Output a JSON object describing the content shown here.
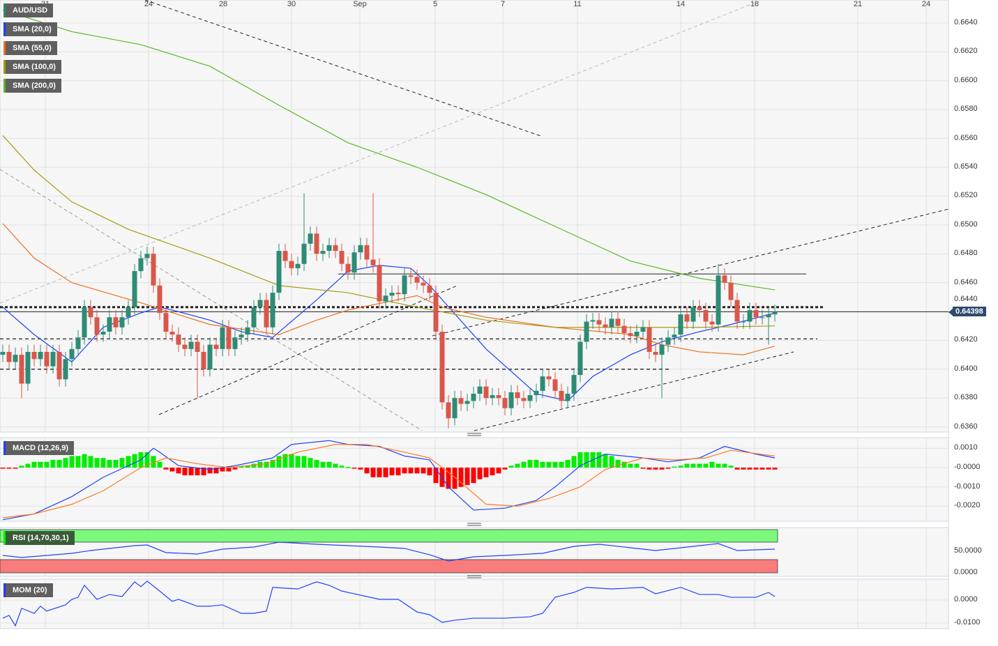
{
  "symbol": "AUD/USD",
  "legend": {
    "symbol": "AUD/USD",
    "sma20": "SMA (20,0)",
    "sma55": "SMA (55,0)",
    "sma100": "SMA (100,0)",
    "sma200": "SMA (200,0)",
    "macd": "MACD (12,26,9)",
    "rsi": "RSI (14,70,30,1)",
    "mom": "MOM (20)"
  },
  "current_price": "0.64398",
  "colors": {
    "up": "#2e8b74",
    "down": "#d9574a",
    "sma20": "#1f3fff",
    "sma55": "#f07020",
    "sma100": "#a89a10",
    "sma200": "#5ab820",
    "macd": "#2040ff",
    "signal": "#ff7a20",
    "hist_up": "#00ee00",
    "hist_down": "#ff0000",
    "rsi_over": "#7cf87c",
    "rsi_under": "#f87c7c",
    "mom": "#2040ff"
  },
  "chart_data": [
    {
      "type": "candlestick",
      "title": "AUD/USD",
      "y_ticks": [
        "0.6640",
        "0.6620",
        "0.6600",
        "0.6580",
        "0.6560",
        "0.6540",
        "0.6520",
        "0.6500",
        "0.6480",
        "0.6460",
        "0.6440",
        "0.6420",
        "0.6400",
        "0.6380",
        "0.6360"
      ],
      "ylim": [
        0.6355,
        0.665
      ],
      "x_ticks": [
        "21",
        "24",
        "28",
        "30",
        "Sep",
        "5",
        "7",
        "11",
        "14",
        "18",
        "21",
        "24"
      ],
      "open_first": 0.641,
      "closes": [
        0.6412,
        0.6405,
        0.641,
        0.639,
        0.6412,
        0.6407,
        0.6412,
        0.6402,
        0.6412,
        0.6393,
        0.6407,
        0.6414,
        0.6422,
        0.6443,
        0.6436,
        0.6424,
        0.6426,
        0.6436,
        0.6429,
        0.6436,
        0.6443,
        0.6468,
        0.6477,
        0.648,
        0.6458,
        0.6439,
        0.6426,
        0.6424,
        0.6417,
        0.6414,
        0.6419,
        0.6412,
        0.64,
        0.6417,
        0.6414,
        0.6429,
        0.6414,
        0.6422,
        0.6424,
        0.6429,
        0.6443,
        0.6448,
        0.6429,
        0.6453,
        0.6482,
        0.6475,
        0.647,
        0.6473,
        0.6487,
        0.6494,
        0.648,
        0.6482,
        0.6486,
        0.6482,
        0.6473,
        0.6467,
        0.6481,
        0.6486,
        0.6476,
        0.6472,
        0.6447,
        0.6451,
        0.6453,
        0.6452,
        0.6465,
        0.6464,
        0.646,
        0.6458,
        0.6453,
        0.6426,
        0.6377,
        0.6366,
        0.638,
        0.6376,
        0.6378,
        0.6383,
        0.6388,
        0.638,
        0.6382,
        0.638,
        0.6373,
        0.6384,
        0.638,
        0.6378,
        0.6382,
        0.6385,
        0.6395,
        0.6393,
        0.6385,
        0.6378,
        0.6383,
        0.6396,
        0.6419,
        0.6433,
        0.6434,
        0.6431,
        0.6429,
        0.6435,
        0.643,
        0.6425,
        0.6423,
        0.6426,
        0.6429,
        0.6412,
        0.641,
        0.6417,
        0.6422,
        0.6424,
        0.6438,
        0.6433,
        0.6443,
        0.6441,
        0.6433,
        0.6431,
        0.6465,
        0.646,
        0.6448,
        0.6433,
        0.6433,
        0.6441,
        0.6436,
        0.6436,
        0.6438,
        0.64398
      ],
      "wick": 0.0005,
      "wick_overrides": {
        "3": {
          "low": 0.638
        },
        "31": {
          "low": 0.638
        },
        "48": {
          "high": 0.6522
        },
        "59": {
          "high": 0.6522
        },
        "71": {
          "low": 0.6359
        },
        "105": {
          "low": 0.638
        },
        "114": {
          "high": 0.6473
        },
        "122": {
          "low": 0.6417
        }
      },
      "sma": {
        "sma20": [
          [
            0,
            0.6443
          ],
          [
            5,
            0.6424
          ],
          [
            11,
            0.6405
          ],
          [
            16,
            0.6429
          ],
          [
            22,
            0.6439
          ],
          [
            25,
            0.6443
          ],
          [
            27,
            0.6441
          ],
          [
            33,
            0.6434
          ],
          [
            38,
            0.6426
          ],
          [
            43,
            0.6422
          ],
          [
            50,
            0.6448
          ],
          [
            55,
            0.6468
          ],
          [
            60,
            0.6472
          ],
          [
            65,
            0.647
          ],
          [
            68,
            0.6458
          ],
          [
            77,
            0.6414
          ],
          [
            85,
            0.6383
          ],
          [
            90,
            0.6378
          ],
          [
            94,
            0.6395
          ],
          [
            100,
            0.641
          ],
          [
            105,
            0.6419
          ],
          [
            111,
            0.6426
          ],
          [
            116,
            0.6431
          ],
          [
            123,
            0.6439
          ]
        ],
        "sma55": [
          [
            0,
            0.6501
          ],
          [
            5,
            0.6477
          ],
          [
            11,
            0.646
          ],
          [
            22,
            0.6446
          ],
          [
            33,
            0.6431
          ],
          [
            44,
            0.6424
          ],
          [
            50,
            0.6434
          ],
          [
            55,
            0.6441
          ],
          [
            66,
            0.6451
          ],
          [
            70,
            0.6443
          ],
          [
            77,
            0.6436
          ],
          [
            88,
            0.6429
          ],
          [
            100,
            0.6424
          ],
          [
            105,
            0.6417
          ],
          [
            111,
            0.6412
          ],
          [
            118,
            0.641
          ],
          [
            123,
            0.6416
          ]
        ],
        "sma100": [
          [
            0,
            0.6562
          ],
          [
            5,
            0.6538
          ],
          [
            11,
            0.6516
          ],
          [
            20,
            0.6497
          ],
          [
            33,
            0.6477
          ],
          [
            44,
            0.6458
          ],
          [
            55,
            0.6453
          ],
          [
            66,
            0.6443
          ],
          [
            77,
            0.6434
          ],
          [
            88,
            0.6429
          ],
          [
            100,
            0.6429
          ],
          [
            111,
            0.6429
          ],
          [
            123,
            0.643
          ]
        ],
        "sma200": [
          [
            0,
            0.6649
          ],
          [
            11,
            0.6634
          ],
          [
            22,
            0.6625
          ],
          [
            33,
            0.661
          ],
          [
            44,
            0.6583
          ],
          [
            55,
            0.6557
          ],
          [
            66,
            0.654
          ],
          [
            77,
            0.6521
          ],
          [
            88,
            0.6499
          ],
          [
            100,
            0.6475
          ],
          [
            111,
            0.6463
          ],
          [
            123,
            0.6455
          ]
        ]
      },
      "levels": [
        {
          "name": "resistance-dotted",
          "price": 0.6443
        },
        {
          "name": "current-price-line",
          "price": 0.64398
        },
        {
          "name": "support-dashed",
          "price": 0.6421
        },
        {
          "name": "support-dashed-2",
          "price": 0.64
        },
        {
          "name": "resistance-solid",
          "price": 0.6466
        }
      ]
    },
    {
      "type": "bar+line",
      "title": "MACD (12,26,9)",
      "y_ticks": [
        "0.0010",
        "-0.0000",
        "-0.0010",
        "-0.0020"
      ],
      "histogram": [
        -5e-05,
        -5e-05,
        -5e-05,
        0.0001,
        0.0002,
        0.0003,
        0.0003,
        0.0003,
        0.0004,
        0.0004,
        0.0005,
        0.0006,
        0.0006,
        0.0007,
        0.0006,
        0.0005,
        0.0005,
        0.0004,
        0.0004,
        0.0005,
        0.0006,
        0.0007,
        0.0008,
        0.0008,
        0.0006,
        0.0003,
        -0.0001,
        -0.0002,
        -0.0003,
        -0.0004,
        -0.0004,
        -0.0004,
        -0.0004,
        -0.0003,
        -0.0003,
        -0.0002,
        -0.0002,
        -0.0001,
        5e-05,
        0.0001,
        0.0002,
        0.0003,
        0.0003,
        0.0004,
        0.0006,
        0.0007,
        0.0007,
        0.0006,
        0.0006,
        0.0005,
        0.0004,
        0.0003,
        0.0003,
        0.0002,
        0.0001,
        3e-05,
        -5e-05,
        -0.0001,
        -0.0003,
        -0.0005,
        -0.0005,
        -0.0005,
        -0.0004,
        -0.0004,
        -0.0003,
        -0.0003,
        -0.0003,
        -0.0003,
        -0.0004,
        -0.0008,
        -0.001,
        -0.0011,
        -0.0011,
        -0.001,
        -0.0009,
        -0.0008,
        -0.0006,
        -0.0005,
        -0.0004,
        -0.0003,
        -0.0001,
        0.0001,
        0.0002,
        0.0003,
        0.0004,
        0.0004,
        0.0003,
        0.0003,
        0.0003,
        0.0003,
        0.0004,
        0.0006,
        0.0008,
        0.0008,
        0.0008,
        0.0008,
        0.0007,
        0.0006,
        0.0004,
        0.0003,
        0.0002,
        0.0002,
        -5e-05,
        -0.0001,
        -0.0001,
        -0.0001,
        -5e-05,
        5e-05,
        0.0001,
        0.0002,
        0.0002,
        0.0002,
        0.0002,
        0.0003,
        0.0002,
        0.0002,
        0.0001,
        -0.0001,
        -0.0001,
        -0.0001,
        -0.0001,
        -0.0001,
        -0.0001,
        -0.0001
      ],
      "macd": [
        [
          0,
          -0.0027
        ],
        [
          5,
          -0.0024
        ],
        [
          11,
          -0.0015
        ],
        [
          16,
          -0.0005
        ],
        [
          22,
          0.0004
        ],
        [
          24,
          0.001
        ],
        [
          25,
          0.0008
        ],
        [
          28,
          0.0001
        ],
        [
          33,
          -0.0001
        ],
        [
          37,
          0.0001
        ],
        [
          43,
          0.0005
        ],
        [
          46,
          0.0012
        ],
        [
          52,
          0.0014
        ],
        [
          55,
          0.0012
        ],
        [
          60,
          0.0011
        ],
        [
          64,
          0.0006
        ],
        [
          68,
          0.0004
        ],
        [
          71,
          -0.001
        ],
        [
          75,
          -0.0022
        ],
        [
          80,
          -0.0021
        ],
        [
          85,
          -0.0017
        ],
        [
          88,
          -0.001
        ],
        [
          92,
          0.0001
        ],
        [
          96,
          0.0007
        ],
        [
          102,
          0.0005
        ],
        [
          106,
          0.0003
        ],
        [
          111,
          0.0005
        ],
        [
          115,
          0.0011
        ],
        [
          120,
          0.0007
        ],
        [
          123,
          0.0005
        ]
      ],
      "signal": [
        [
          0,
          -0.0026
        ],
        [
          5,
          -0.0024
        ],
        [
          11,
          -0.0019
        ],
        [
          16,
          -0.0012
        ],
        [
          22,
          0.0
        ],
        [
          26,
          0.0005
        ],
        [
          31,
          0.0002
        ],
        [
          36,
          0.0
        ],
        [
          42,
          0.0002
        ],
        [
          47,
          0.0008
        ],
        [
          53,
          0.0012
        ],
        [
          58,
          0.0012
        ],
        [
          64,
          0.0008
        ],
        [
          68,
          0.0005
        ],
        [
          72,
          -0.0005
        ],
        [
          77,
          -0.0019
        ],
        [
          82,
          -0.002
        ],
        [
          87,
          -0.0016
        ],
        [
          92,
          -0.001
        ],
        [
          96,
          -0.0001
        ],
        [
          102,
          0.0005
        ],
        [
          107,
          0.0004
        ],
        [
          112,
          0.0005
        ],
        [
          116,
          0.0009
        ],
        [
          123,
          0.0006
        ]
      ]
    },
    {
      "type": "line",
      "title": "RSI (14,70,30,1)",
      "y_ticks": [
        "50.0000",
        "0.0000"
      ],
      "overbought": 70,
      "oversold": 30,
      "values": [
        [
          0,
          40.3
        ],
        [
          3,
          35.5
        ],
        [
          7,
          40.3
        ],
        [
          11,
          45.2
        ],
        [
          14,
          51.6
        ],
        [
          21,
          62.9
        ],
        [
          23,
          64.5
        ],
        [
          26,
          46.8
        ],
        [
          31,
          43.5
        ],
        [
          35,
          54.8
        ],
        [
          40,
          59.7
        ],
        [
          44,
          71.0
        ],
        [
          50,
          66.1
        ],
        [
          55,
          62.9
        ],
        [
          60,
          59.7
        ],
        [
          64,
          56.5
        ],
        [
          68,
          41.9
        ],
        [
          71,
          27.4
        ],
        [
          75,
          37.1
        ],
        [
          80,
          40.3
        ],
        [
          86,
          45.2
        ],
        [
          91,
          61.3
        ],
        [
          95,
          66.1
        ],
        [
          100,
          58.1
        ],
        [
          104,
          51.6
        ],
        [
          110,
          61.3
        ],
        [
          114,
          67.7
        ],
        [
          117,
          51.6
        ],
        [
          123,
          54.8
        ]
      ]
    },
    {
      "type": "line",
      "title": "MOM (20)",
      "y_ticks": [
        "0.0000",
        "-0.0100"
      ],
      "values": [
        [
          0,
          -0.0079
        ],
        [
          1,
          -0.0067
        ],
        [
          2,
          -0.0112
        ],
        [
          3,
          -0.0036
        ],
        [
          5,
          -0.0058
        ],
        [
          6,
          -0.0027
        ],
        [
          7,
          -0.0048
        ],
        [
          10,
          -0.0021
        ],
        [
          11,
          0.0003
        ],
        [
          12,
          0.0012
        ],
        [
          13,
          0.0064
        ],
        [
          15,
          0.0003
        ],
        [
          17,
          0.0024
        ],
        [
          19,
          0.0015
        ],
        [
          21,
          0.0079
        ],
        [
          22,
          0.0058
        ],
        [
          23,
          0.0082
        ],
        [
          25,
          0.0039
        ],
        [
          27,
          -0.0006
        ],
        [
          28,
          0.0003
        ],
        [
          31,
          -0.0027
        ],
        [
          33,
          -0.0027
        ],
        [
          35,
          -0.0021
        ],
        [
          38,
          -0.0058
        ],
        [
          40,
          -0.0058
        ],
        [
          42,
          -0.0048
        ],
        [
          43,
          0.0055
        ],
        [
          47,
          0.0048
        ],
        [
          50,
          0.0079
        ],
        [
          52,
          0.0064
        ],
        [
          54,
          0.0039
        ],
        [
          56,
          0.0027
        ],
        [
          60,
          0.0003
        ],
        [
          63,
          0.0003
        ],
        [
          66,
          -0.0052
        ],
        [
          68,
          -0.0064
        ],
        [
          70,
          -0.0097
        ],
        [
          72,
          -0.0088
        ],
        [
          75,
          -0.0079
        ],
        [
          80,
          -0.0079
        ],
        [
          84,
          -0.0073
        ],
        [
          86,
          -0.0058
        ],
        [
          88,
          0.0012
        ],
        [
          91,
          0.0033
        ],
        [
          93,
          0.0055
        ],
        [
          97,
          0.0048
        ],
        [
          102,
          0.0055
        ],
        [
          104,
          0.0027
        ],
        [
          108,
          0.0055
        ],
        [
          111,
          0.0024
        ],
        [
          114,
          0.0024
        ],
        [
          116,
          0.0012
        ],
        [
          120,
          0.0012
        ],
        [
          122,
          0.0033
        ],
        [
          123,
          0.0015
        ]
      ]
    }
  ]
}
